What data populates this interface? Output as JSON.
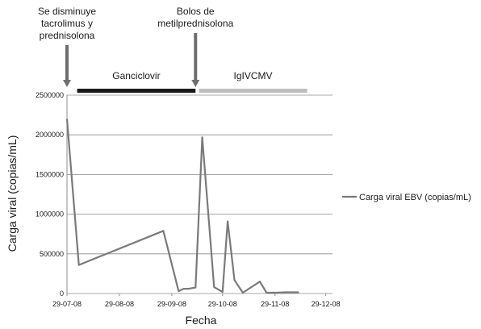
{
  "chart_data": {
    "type": "line",
    "xlabel": "Fecha",
    "ylabel": "Carga viral (copias/mL)",
    "ylim": [
      0,
      2500000
    ],
    "y_ticks": [
      "0",
      "500000",
      "1000000",
      "1500000",
      "2000000",
      "2500000"
    ],
    "x_ticks": [
      "29-07-08",
      "29-08-08",
      "29-09-08",
      "29-10-08",
      "29-11-08",
      "29-12-08"
    ],
    "grid": true,
    "legend_position": "right",
    "series": [
      {
        "name": "Carga viral EBV (copias/mL)",
        "color": "#7a7a7a",
        "x": [
          "2008-07-29",
          "2008-08-05",
          "2008-09-24",
          "2008-10-03",
          "2008-10-06",
          "2008-10-09",
          "2008-10-13",
          "2008-10-17",
          "2008-10-24",
          "2008-10-29",
          "2008-11-01",
          "2008-11-05",
          "2008-11-10",
          "2008-11-20",
          "2008-11-24",
          "2008-11-30",
          "2008-12-05",
          "2008-12-13"
        ],
        "values": [
          2200000,
          360000,
          790000,
          30000,
          60000,
          60000,
          75000,
          1970000,
          80000,
          20000,
          910000,
          170000,
          10000,
          150000,
          10000,
          10000,
          15000,
          15000
        ]
      }
    ],
    "treatment_bars": [
      {
        "label": "Ganciclovir",
        "start": "2008-08-04",
        "end": "2008-10-13",
        "color": "#1a1a1a"
      },
      {
        "label": "IgIVCMV",
        "start": "2008-10-15",
        "end": "2008-12-18",
        "color": "#bdbdbd"
      }
    ],
    "annotations": [
      {
        "lines": [
          "Se disminuye",
          "tacrolimus y",
          "prednisolona"
        ],
        "date": "2008-07-29"
      },
      {
        "lines": [
          "Bolos de",
          "metilprednisolona"
        ],
        "date": "2008-10-13"
      }
    ]
  }
}
